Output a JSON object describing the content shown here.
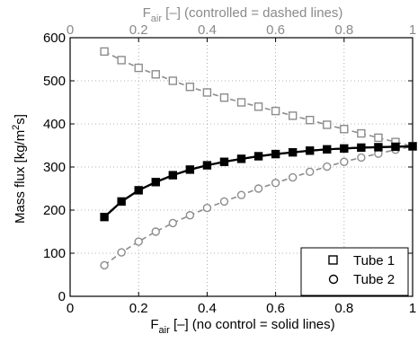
{
  "chart_data": {
    "type": "line",
    "xlabel_bottom": {
      "main": "F",
      "sub": "air",
      "rest": " [–] (no control = solid lines)"
    },
    "xlabel_top": {
      "main": "F",
      "sub": "air",
      "rest": " [–] (controlled = dashed lines)"
    },
    "ylabel": {
      "main": "Mass flux [kg/m",
      "sup": "2",
      "rest": "s]"
    },
    "xlim": [
      0,
      1
    ],
    "ylim": [
      0,
      600
    ],
    "x_ticks": [
      0,
      0.2,
      0.4,
      0.6,
      0.8,
      1
    ],
    "x_tick_labels": [
      "0",
      "0.2",
      "0.4",
      "0.6",
      "0.8",
      "1"
    ],
    "y_ticks": [
      0,
      100,
      200,
      300,
      400,
      500,
      600
    ],
    "y_tick_labels": [
      "0",
      "100",
      "200",
      "300",
      "400",
      "500",
      "600"
    ],
    "grid": true,
    "legend_position": "bottom-right",
    "x": [
      0.1,
      0.15,
      0.2,
      0.25,
      0.3,
      0.35,
      0.4,
      0.45,
      0.5,
      0.55,
      0.6,
      0.65,
      0.7,
      0.75,
      0.8,
      0.85,
      0.9,
      0.95,
      1.0
    ],
    "series": [
      {
        "name": "Tube 1",
        "style": "dashed",
        "marker": "square",
        "color": "#8c8c8c",
        "values": [
          568,
          548,
          530,
          515,
          500,
          486,
          473,
          461,
          450,
          440,
          430,
          419,
          409,
          398,
          388,
          378,
          368,
          358,
          348
        ]
      },
      {
        "name": "Tube 2",
        "style": "dashed",
        "marker": "circle",
        "color": "#8c8c8c",
        "values": [
          72,
          102,
          127,
          150,
          170,
          188,
          205,
          220,
          235,
          250,
          263,
          276,
          289,
          301,
          312,
          322,
          331,
          340,
          348
        ]
      },
      {
        "style": "solid",
        "marker": "square",
        "color": "#000000",
        "values": [
          184,
          220,
          246,
          265,
          281,
          294,
          304,
          312,
          319,
          325,
          330,
          334,
          338,
          341,
          343,
          345,
          346,
          347,
          348
        ]
      },
      {
        "style": "solid",
        "marker": "circle",
        "color": "#000000",
        "values": [
          184,
          220,
          246,
          265,
          281,
          294,
          304,
          312,
          319,
          325,
          330,
          334,
          338,
          341,
          343,
          345,
          346,
          347,
          348
        ]
      }
    ],
    "legend": [
      {
        "label": "Tube 1",
        "marker": "square"
      },
      {
        "label": "Tube 2",
        "marker": "circle"
      }
    ]
  }
}
